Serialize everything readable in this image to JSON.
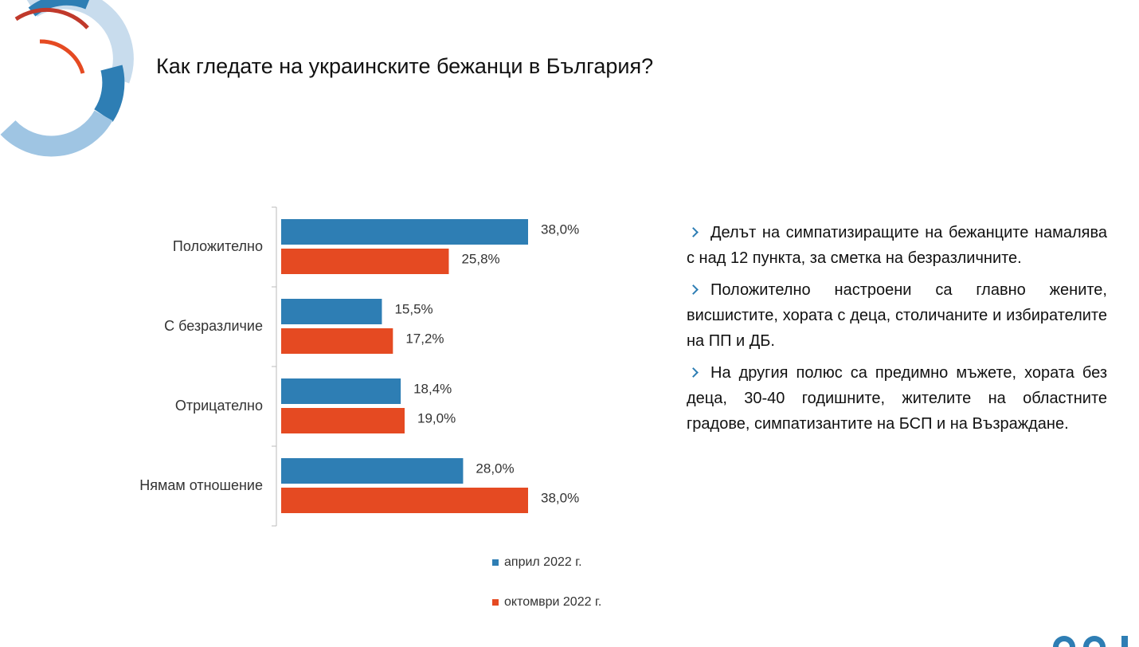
{
  "title": "Как гледате на украинските бежанци в България?",
  "chart_data": {
    "type": "hbar",
    "categories": [
      "Положително",
      "С безразличие",
      "Отрицателно",
      "Нямам отношение"
    ],
    "series": [
      {
        "name": "април 2022 г.",
        "color": "#2e7eb4",
        "values": [
          38.0,
          15.5,
          18.4,
          28.0
        ],
        "value_labels": [
          "38,0%",
          "15,5%",
          "18,4%",
          "28,0%"
        ]
      },
      {
        "name": "октомври 2022 г.",
        "color": "#e54a22",
        "values": [
          25.8,
          17.2,
          19.0,
          38.0
        ],
        "value_labels": [
          "25,8%",
          "17,2%",
          "19,0%",
          "38,0%"
        ]
      }
    ]
  },
  "notes": [
    "Делът на симпатизиращите на бежанците намалява с над 12 пункта, за сметка на безразличните.",
    "Положително настроени са главно жените, висшистите, хората с деца, столичаните и избирателите на ПП и ДБ.",
    "На другия полюс са предимно мъжете, хората без деца, 30-40 годишните, жителите на областните градове, симпатизантите на БСП и на Възраждане."
  ]
}
